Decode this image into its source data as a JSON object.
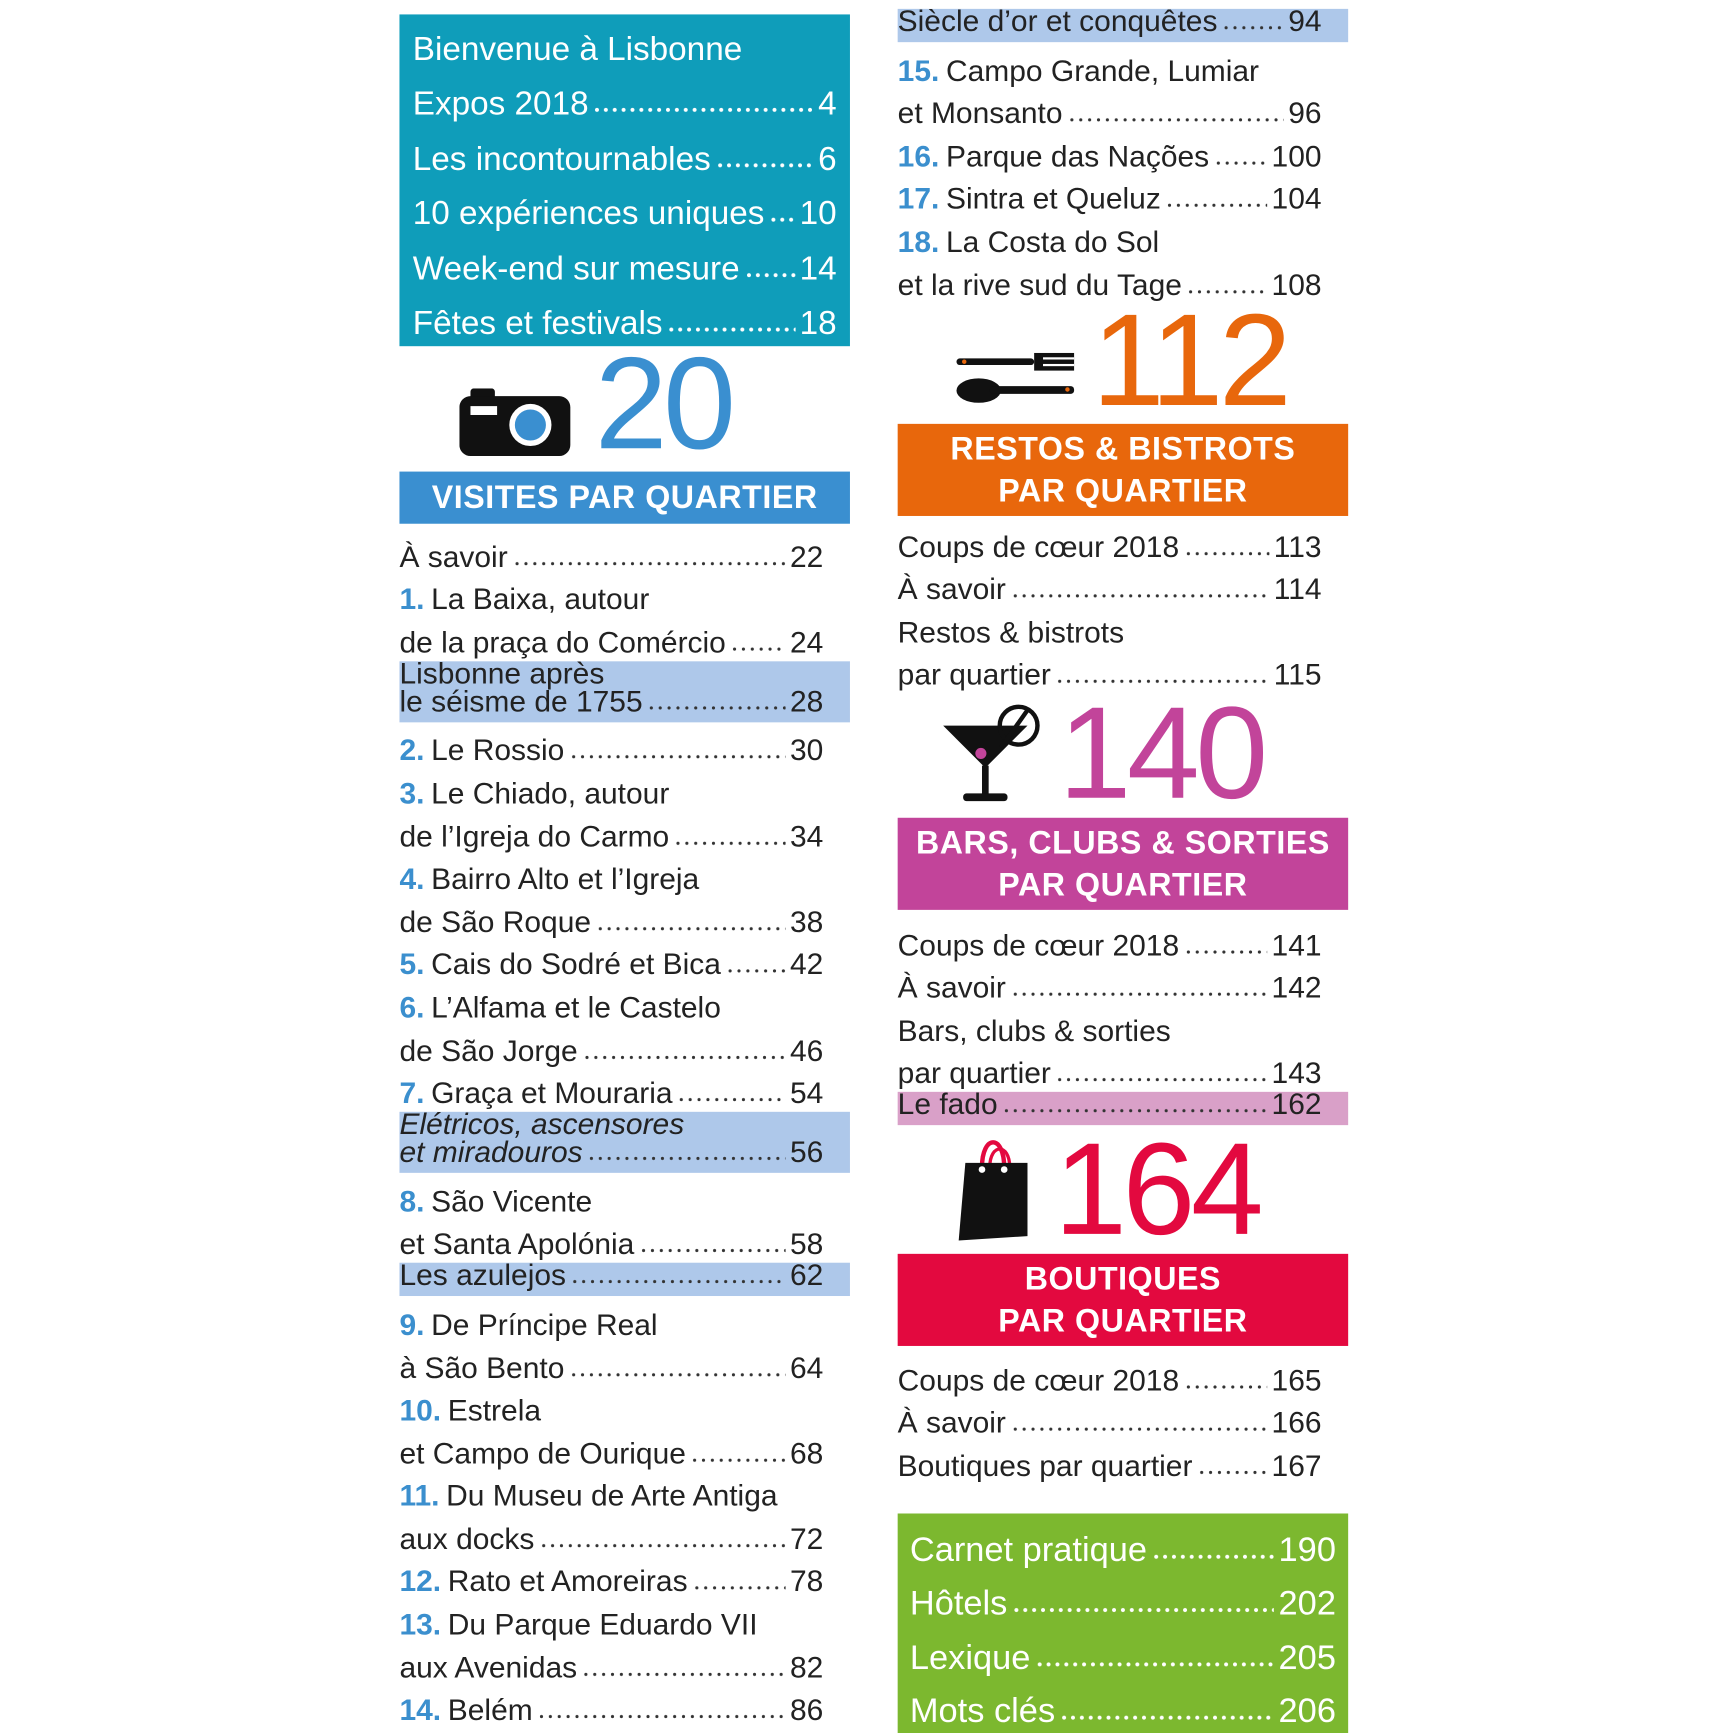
{
  "intro": {
    "title": "Bienvenue à Lisbonne",
    "items": [
      {
        "label": "Expos 2018",
        "page": 4
      },
      {
        "label": "Les incontournables",
        "page": 6
      },
      {
        "label": "10 expériences uniques",
        "page": 10
      },
      {
        "label": "Week-end sur mesure",
        "page": 14
      },
      {
        "label": "Fêtes et festivals",
        "page": 18
      }
    ]
  },
  "visits": {
    "count": 20,
    "heading": [
      "VISITES PAR QUARTIER"
    ],
    "entries": [
      {
        "lines": [
          "À savoir"
        ],
        "page": 22
      },
      {
        "num": "1.",
        "lines": [
          "La Baixa, autour",
          "de la praça do Comércio"
        ],
        "page": 24
      },
      {
        "lines": [
          "Lisbonne après",
          "le séisme de 1755"
        ],
        "page": 28,
        "highlight": true
      },
      {
        "num": "2.",
        "lines": [
          "Le Rossio"
        ],
        "page": 30
      },
      {
        "num": "3.",
        "lines": [
          "Le Chiado, autour",
          "de l’Igreja do Carmo"
        ],
        "page": 34
      },
      {
        "num": "4.",
        "lines": [
          "Bairro Alto et l’Igreja",
          "de São Roque"
        ],
        "page": 38
      },
      {
        "num": "5.",
        "lines": [
          "Cais do Sodré et Bica"
        ],
        "page": 42
      },
      {
        "num": "6.",
        "lines": [
          "L’Alfama et le Castelo",
          "de São Jorge"
        ],
        "page": 46
      },
      {
        "num": "7.",
        "lines": [
          "Graça et Mouraria"
        ],
        "page": 54
      },
      {
        "lines": [
          "Elétricos, ascensores",
          "et miradouros"
        ],
        "page": 56,
        "highlight": true,
        "italic": true
      },
      {
        "num": "8.",
        "lines": [
          "São Vicente",
          "et Santa Apolónia"
        ],
        "page": 58
      },
      {
        "lines": [
          "Les azulejos"
        ],
        "page": 62,
        "highlight": true
      },
      {
        "num": "9.",
        "lines": [
          "De Príncipe Real",
          "à São Bento"
        ],
        "page": 64
      },
      {
        "num": "10.",
        "lines": [
          "Estrela",
          "et Campo de Ourique"
        ],
        "page": 68
      },
      {
        "num": "11.",
        "lines": [
          "Du Museu de Arte Antiga",
          "aux docks"
        ],
        "page": 72
      },
      {
        "num": "12.",
        "lines": [
          "Rato et Amoreiras"
        ],
        "page": 78
      },
      {
        "num": "13.",
        "lines": [
          "Du Parque Eduardo VII",
          "aux Avenidas"
        ],
        "page": 82
      },
      {
        "num": "14.",
        "lines": [
          "Belém"
        ],
        "page": 86
      },
      {
        "lines": [
          "Siècle d’or et conquêtes"
        ],
        "page": 94,
        "highlight": true
      },
      {
        "num": "15.",
        "lines": [
          "Campo Grande, Lumiar",
          "et Monsanto"
        ],
        "page": 96
      },
      {
        "num": "16.",
        "lines": [
          "Parque das Nações"
        ],
        "page": 100
      },
      {
        "num": "17.",
        "lines": [
          "Sintra et Queluz"
        ],
        "page": 104
      },
      {
        "num": "18.",
        "lines": [
          "La Costa do Sol",
          "et la rive sud du Tage"
        ],
        "page": 108
      }
    ]
  },
  "restos": {
    "count": 112,
    "heading": [
      "RESTOS & BISTROTS",
      "PAR QUARTIER"
    ],
    "entries": [
      {
        "lines": [
          "Coups de cœur 2018"
        ],
        "page": 113
      },
      {
        "lines": [
          "À savoir"
        ],
        "page": 114
      },
      {
        "lines": [
          "Restos & bistrots",
          "par quartier"
        ],
        "page": 115
      }
    ]
  },
  "bars": {
    "count": 140,
    "heading": [
      "BARS, CLUBS & SORTIES",
      "PAR QUARTIER"
    ],
    "entries": [
      {
        "lines": [
          "Coups de cœur 2018"
        ],
        "page": 141
      },
      {
        "lines": [
          "À savoir"
        ],
        "page": 142
      },
      {
        "lines": [
          "Bars, clubs & sorties",
          "par quartier"
        ],
        "page": 143
      },
      {
        "lines": [
          "Le fado"
        ],
        "page": 162,
        "highlight": true
      }
    ]
  },
  "boutiques": {
    "count": 164,
    "heading": [
      "BOUTIQUES",
      "PAR QUARTIER"
    ],
    "entries": [
      {
        "lines": [
          "Coups de cœur 2018"
        ],
        "page": 165
      },
      {
        "lines": [
          "À savoir"
        ],
        "page": 166
      },
      {
        "lines": [
          "Boutiques par quartier"
        ],
        "page": 167
      }
    ]
  },
  "practical": {
    "items": [
      {
        "label": "Carnet pratique",
        "page": 190
      },
      {
        "label": "Hôtels",
        "page": 202
      },
      {
        "label": "Lexique",
        "page": 205
      },
      {
        "label": "Mots clés",
        "page": 206
      }
    ]
  }
}
